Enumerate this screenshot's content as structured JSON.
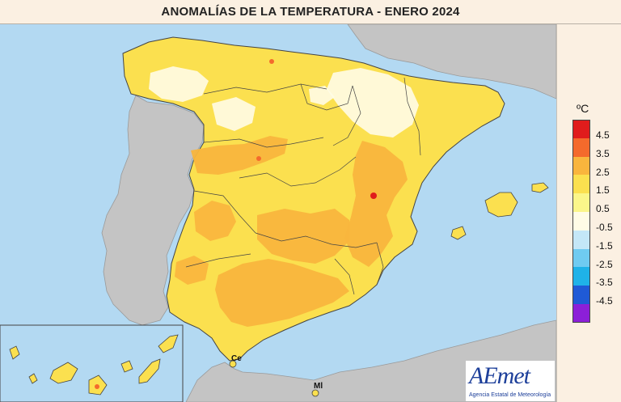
{
  "title": "ANOMALÍAS DE LA TEMPERATURA - ENERO 2024",
  "legend": {
    "unit": "ºC",
    "bins": [
      {
        "color": "#e01c1c",
        "label": "4.5"
      },
      {
        "color": "#f46a2c",
        "label": "3.5"
      },
      {
        "color": "#f9b53d",
        "label": "2.5"
      },
      {
        "color": "#fbe04f",
        "label": "1.5"
      },
      {
        "color": "#fbf68a",
        "label": "0.5"
      },
      {
        "color": "#fffce6",
        "label": "-0.5"
      },
      {
        "color": "#c4e7f7",
        "label": "-1.5"
      },
      {
        "color": "#6fcbf1",
        "label": "-2.5"
      },
      {
        "color": "#1fb2e8",
        "label": "-3.5"
      },
      {
        "color": "#1f5ad6",
        "label": "-4.5"
      },
      {
        "color": "#8c1fd8",
        "label": ""
      }
    ]
  },
  "places": {
    "ceuta": "Ce",
    "melilla": "Ml"
  },
  "logo": {
    "name": "AEmet",
    "tagline": "Agencia Estatal de Meteorología"
  },
  "colors": {
    "sea": "#b3d9f2",
    "neighbor_land": "#c4c4c4",
    "base_anomaly": "#fbe04f",
    "warm_anomaly": "#f9b53d",
    "cool_anomaly": "#fffce6",
    "hot_spot": "#e01c1c"
  }
}
